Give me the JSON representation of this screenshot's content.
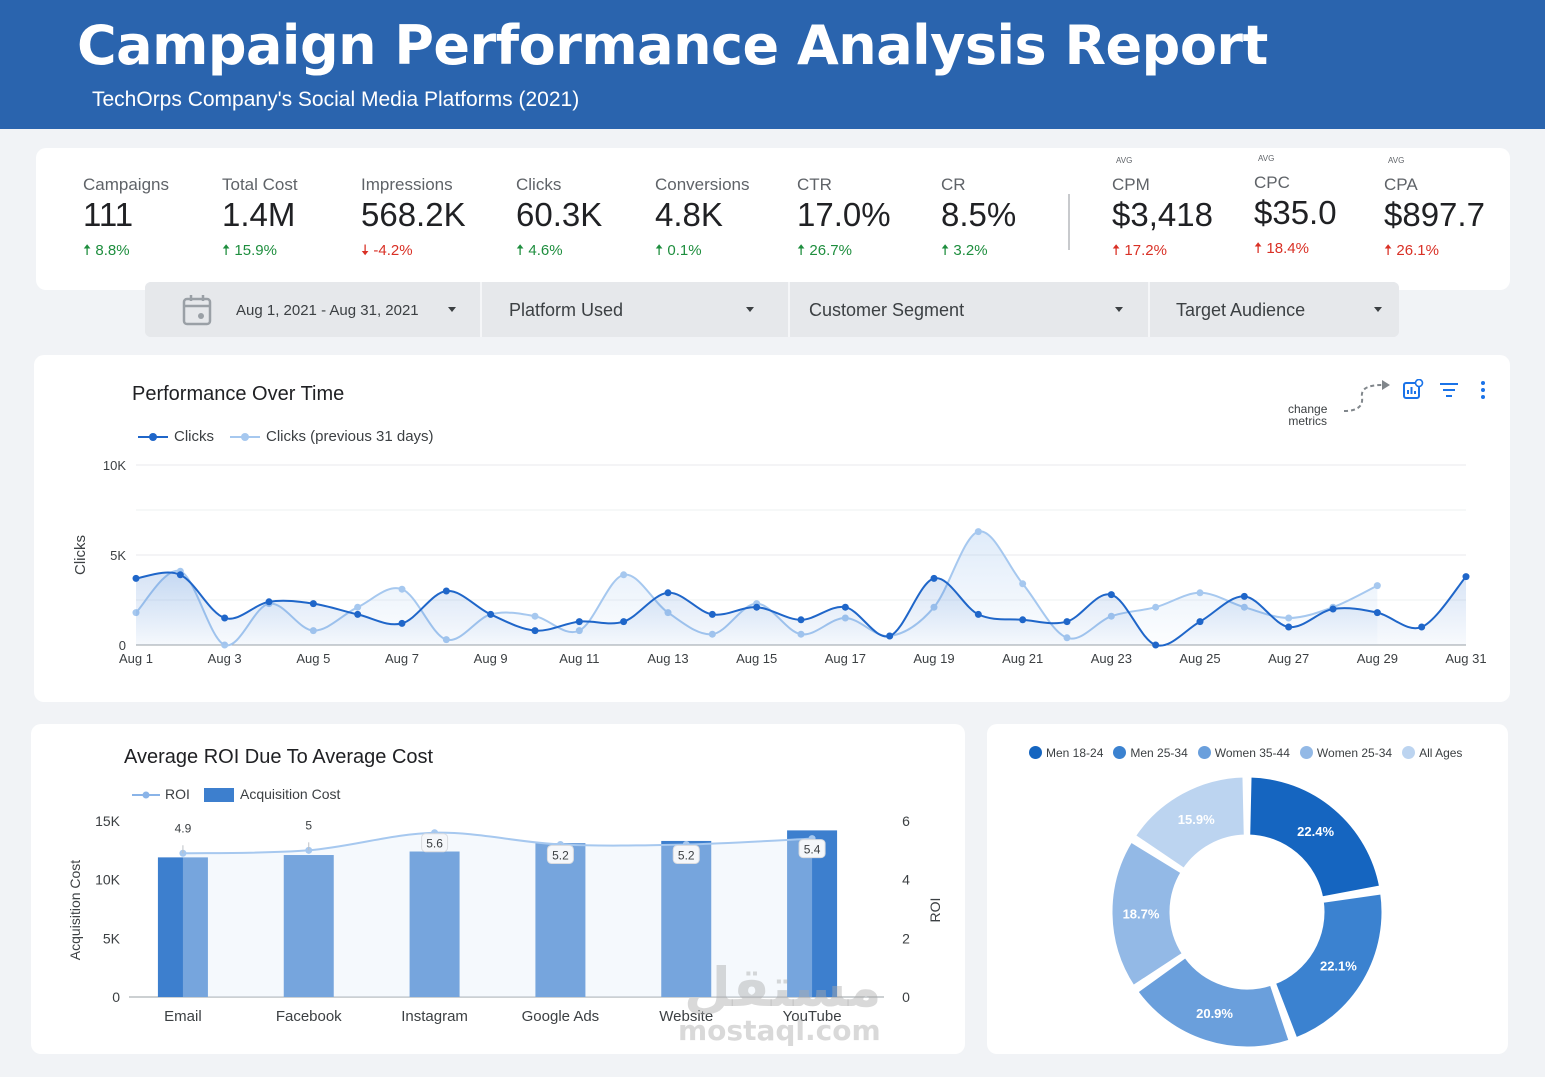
{
  "header": {
    "title": "Campaign Performance Analysis Report",
    "subtitle": "TechOrps Company's Social Media Platforms (2021)"
  },
  "kpis": [
    {
      "label": "Campaigns",
      "value": "111",
      "delta": "8.8%",
      "dir": "up"
    },
    {
      "label": "Total Cost",
      "value": "1.4M",
      "delta": "15.9%",
      "dir": "up"
    },
    {
      "label": "Impressions",
      "value": "568.2K",
      "delta": "-4.2%",
      "dir": "down"
    },
    {
      "label": "Clicks",
      "value": "60.3K",
      "delta": "4.6%",
      "dir": "up"
    },
    {
      "label": "Conversions",
      "value": "4.8K",
      "delta": "0.1%",
      "dir": "up"
    },
    {
      "label": "CTR",
      "value": "17.0%",
      "delta": "26.7%",
      "dir": "up"
    },
    {
      "label": "CR",
      "value": "8.5%",
      "delta": "3.2%",
      "dir": "up"
    },
    {
      "avg": "AVG",
      "label": "CPM",
      "value": "$3,418",
      "delta": "17.2%",
      "dir": "up-bad"
    },
    {
      "avg": "AVG",
      "label": "CPC",
      "value": "$35.0",
      "delta": "18.4%",
      "dir": "up-bad"
    },
    {
      "avg": "AVG",
      "label": "CPA",
      "value": "$897.7",
      "delta": "26.1%",
      "dir": "up-bad"
    }
  ],
  "filters": {
    "date_range": "Aug 1, 2021 - Aug 31, 2021",
    "platform": "Platform Used",
    "segment": "Customer Segment",
    "audience": "Target Audience"
  },
  "annotation": {
    "line1": "change",
    "line2": "metrics"
  },
  "colors": {
    "primary": "#1f66c9",
    "previous": "#a6c8ef",
    "bar": "#3d7fce",
    "header": "#2a64ae"
  },
  "chart_data": [
    {
      "type": "line",
      "title": "Performance Over Time",
      "ylabel": "Clicks",
      "ylim": [
        0,
        10000
      ],
      "yticks": [
        0,
        5000,
        10000
      ],
      "ytick_labels": [
        "0",
        "5K",
        "10K"
      ],
      "xtick_labels": [
        "Aug 1",
        "Aug 3",
        "Aug 5",
        "Aug 7",
        "Aug 9",
        "Aug 11",
        "Aug 13",
        "Aug 15",
        "Aug 17",
        "Aug 19",
        "Aug 21",
        "Aug 23",
        "Aug 25",
        "Aug 27",
        "Aug 29",
        "Aug 31"
      ],
      "x": [
        1,
        2,
        3,
        4,
        5,
        6,
        7,
        8,
        9,
        10,
        11,
        12,
        13,
        14,
        15,
        16,
        17,
        18,
        19,
        20,
        21,
        22,
        23,
        24,
        25,
        26,
        27,
        28,
        29,
        30,
        31
      ],
      "series": [
        {
          "name": "Clicks",
          "values": [
            3700,
            3900,
            1500,
            2400,
            2300,
            1700,
            1200,
            3000,
            1700,
            800,
            1300,
            1300,
            2900,
            1700,
            2100,
            1400,
            2100,
            500,
            3700,
            1700,
            1400,
            1300,
            2800,
            0,
            1300,
            2700,
            1000,
            2000,
            1800,
            1000,
            3800
          ]
        },
        {
          "name": "Clicks (previous 31 days)",
          "values": [
            1800,
            4100,
            0,
            2300,
            800,
            2100,
            3100,
            300,
            1700,
            1600,
            800,
            3900,
            1800,
            600,
            2300,
            600,
            1500,
            500,
            2100,
            6300,
            3400,
            400,
            1600,
            2100,
            2900,
            2100,
            1500,
            2100,
            3300,
            null,
            null
          ]
        }
      ]
    },
    {
      "type": "bar",
      "title": "Average ROI Due To Average Cost",
      "categories": [
        "Email",
        "Facebook",
        "Instagram",
        "Google Ads",
        "Website",
        "YouTube"
      ],
      "series": [
        {
          "name": "Acquisition Cost",
          "values": [
            11900,
            12100,
            12400,
            13100,
            13300,
            14200
          ]
        },
        {
          "name": "ROI",
          "values": [
            4.9,
            5,
            5.6,
            5.2,
            5.2,
            5.4
          ]
        }
      ],
      "ylabel": "Acquisition Cost",
      "y2label": "ROI",
      "ylim": [
        0,
        15000
      ],
      "y2lim": [
        0,
        6
      ],
      "ytick_labels": [
        "0",
        "5K",
        "10K",
        "15K"
      ],
      "y2tick_labels": [
        "0",
        "2",
        "4",
        "6"
      ]
    },
    {
      "type": "pie",
      "legend": [
        "Men 18-24",
        "Men 25-34",
        "Women 35-44",
        "Women 25-34",
        "All Ages"
      ],
      "values": [
        22.4,
        22.1,
        20.9,
        18.7,
        15.9
      ],
      "labels": [
        "22.4%",
        "22.1%",
        "20.9%",
        "18.7%",
        "15.9%"
      ],
      "colors": [
        "#1565c0",
        "#3b82d0",
        "#6a9fdc",
        "#93b9e6",
        "#bcd4f0"
      ]
    }
  ],
  "watermark": {
    "arabic": "مستقل",
    "latin": "mostaql.com"
  }
}
